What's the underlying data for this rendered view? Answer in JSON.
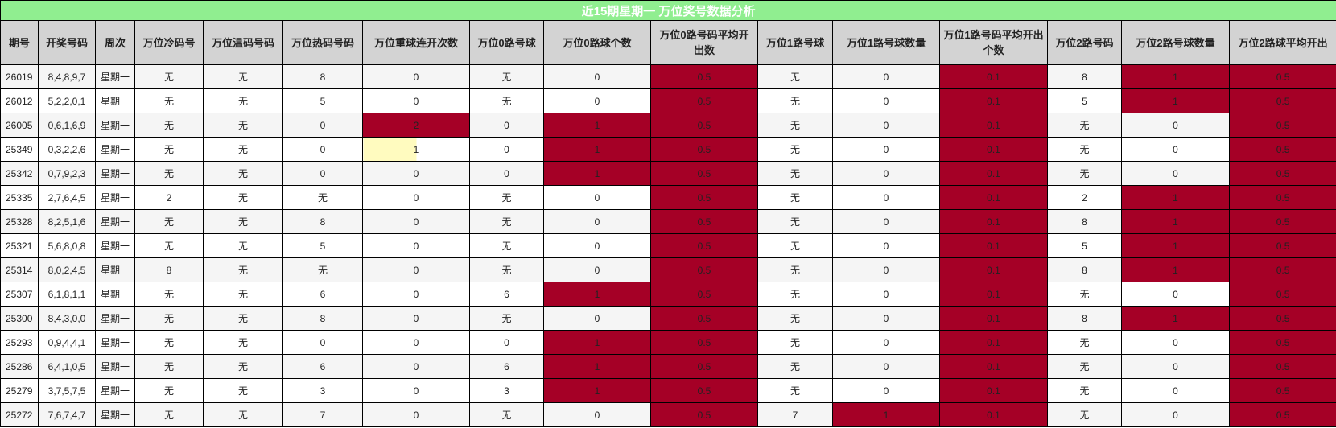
{
  "title": "近15期星期一 万位奖号数据分析",
  "colors": {
    "highlight": "#a50026",
    "title_bg": "#90ee90",
    "header_bg": "#d3d3d3",
    "bar": "#fffbbf"
  },
  "columns": [
    "期号",
    "开奖号码",
    "周次",
    "万位冷码号",
    "万位温码号码",
    "万位热码号码",
    "万位重球连开次数",
    "万位0路号球",
    "万位0路球个数",
    "万位0路号码平均开出数",
    "万位1路号球",
    "万位1路号球数量",
    "万位1路号码平均开出个数",
    "万位2路号码",
    "万位2路号球数量",
    "万位2路球平均开出"
  ],
  "rows": [
    {
      "cells": [
        "26019",
        "8,4,8,9,7",
        "星期一",
        "无",
        "无",
        "8",
        "0",
        "无",
        "0",
        "0.5",
        "无",
        "0",
        "0.1",
        "8",
        "1",
        "0.5"
      ],
      "highlight": [
        9,
        12,
        14,
        15
      ]
    },
    {
      "cells": [
        "26012",
        "5,2,2,0,1",
        "星期一",
        "无",
        "无",
        "5",
        "0",
        "无",
        "0",
        "0.5",
        "无",
        "0",
        "0.1",
        "5",
        "1",
        "0.5"
      ],
      "highlight": [
        9,
        12,
        14,
        15
      ]
    },
    {
      "cells": [
        "26005",
        "0,6,1,6,9",
        "星期一",
        "无",
        "无",
        "0",
        "2",
        "0",
        "1",
        "0.5",
        "无",
        "0",
        "0.1",
        "无",
        "0",
        "0.5"
      ],
      "highlight": [
        6,
        8,
        9,
        12,
        15
      ]
    },
    {
      "cells": [
        "25349",
        "0,3,2,2,6",
        "星期一",
        "无",
        "无",
        "0",
        "1",
        "0",
        "1",
        "0.5",
        "无",
        "0",
        "0.1",
        "无",
        "0",
        "0.5"
      ],
      "highlight": [
        8,
        9,
        12,
        15
      ],
      "bar": {
        "column": 6,
        "fraction": 0.5
      }
    },
    {
      "cells": [
        "25342",
        "0,7,9,2,3",
        "星期一",
        "无",
        "无",
        "0",
        "0",
        "0",
        "1",
        "0.5",
        "无",
        "0",
        "0.1",
        "无",
        "0",
        "0.5"
      ],
      "highlight": [
        8,
        9,
        12,
        15
      ]
    },
    {
      "cells": [
        "25335",
        "2,7,6,4,5",
        "星期一",
        "2",
        "无",
        "无",
        "0",
        "无",
        "0",
        "0.5",
        "无",
        "0",
        "0.1",
        "2",
        "1",
        "0.5"
      ],
      "highlight": [
        9,
        12,
        14,
        15
      ]
    },
    {
      "cells": [
        "25328",
        "8,2,5,1,6",
        "星期一",
        "无",
        "无",
        "8",
        "0",
        "无",
        "0",
        "0.5",
        "无",
        "0",
        "0.1",
        "8",
        "1",
        "0.5"
      ],
      "highlight": [
        9,
        12,
        14,
        15
      ]
    },
    {
      "cells": [
        "25321",
        "5,6,8,0,8",
        "星期一",
        "无",
        "无",
        "5",
        "0",
        "无",
        "0",
        "0.5",
        "无",
        "0",
        "0.1",
        "5",
        "1",
        "0.5"
      ],
      "highlight": [
        9,
        12,
        14,
        15
      ]
    },
    {
      "cells": [
        "25314",
        "8,0,2,4,5",
        "星期一",
        "8",
        "无",
        "无",
        "0",
        "无",
        "0",
        "0.5",
        "无",
        "0",
        "0.1",
        "8",
        "1",
        "0.5"
      ],
      "highlight": [
        9,
        12,
        14,
        15
      ]
    },
    {
      "cells": [
        "25307",
        "6,1,8,1,1",
        "星期一",
        "无",
        "无",
        "6",
        "0",
        "6",
        "1",
        "0.5",
        "无",
        "0",
        "0.1",
        "无",
        "0",
        "0.5"
      ],
      "highlight": [
        8,
        9,
        12,
        15
      ]
    },
    {
      "cells": [
        "25300",
        "8,4,3,0,0",
        "星期一",
        "无",
        "无",
        "8",
        "0",
        "无",
        "0",
        "0.5",
        "无",
        "0",
        "0.1",
        "8",
        "1",
        "0.5"
      ],
      "highlight": [
        9,
        12,
        14,
        15
      ]
    },
    {
      "cells": [
        "25293",
        "0,9,4,4,1",
        "星期一",
        "无",
        "无",
        "0",
        "0",
        "0",
        "1",
        "0.5",
        "无",
        "0",
        "0.1",
        "无",
        "0",
        "0.5"
      ],
      "highlight": [
        8,
        9,
        12,
        15
      ]
    },
    {
      "cells": [
        "25286",
        "6,4,1,0,5",
        "星期一",
        "无",
        "无",
        "6",
        "0",
        "6",
        "1",
        "0.5",
        "无",
        "0",
        "0.1",
        "无",
        "0",
        "0.5"
      ],
      "highlight": [
        8,
        9,
        12,
        15
      ]
    },
    {
      "cells": [
        "25279",
        "3,7,5,7,5",
        "星期一",
        "无",
        "无",
        "3",
        "0",
        "3",
        "1",
        "0.5",
        "无",
        "0",
        "0.1",
        "无",
        "0",
        "0.5"
      ],
      "highlight": [
        8,
        9,
        12,
        15
      ]
    },
    {
      "cells": [
        "25272",
        "7,6,7,4,7",
        "星期一",
        "无",
        "无",
        "7",
        "0",
        "无",
        "0",
        "0.5",
        "7",
        "1",
        "0.1",
        "无",
        "0",
        "0.5"
      ],
      "highlight": [
        9,
        11,
        12,
        15
      ]
    }
  ]
}
